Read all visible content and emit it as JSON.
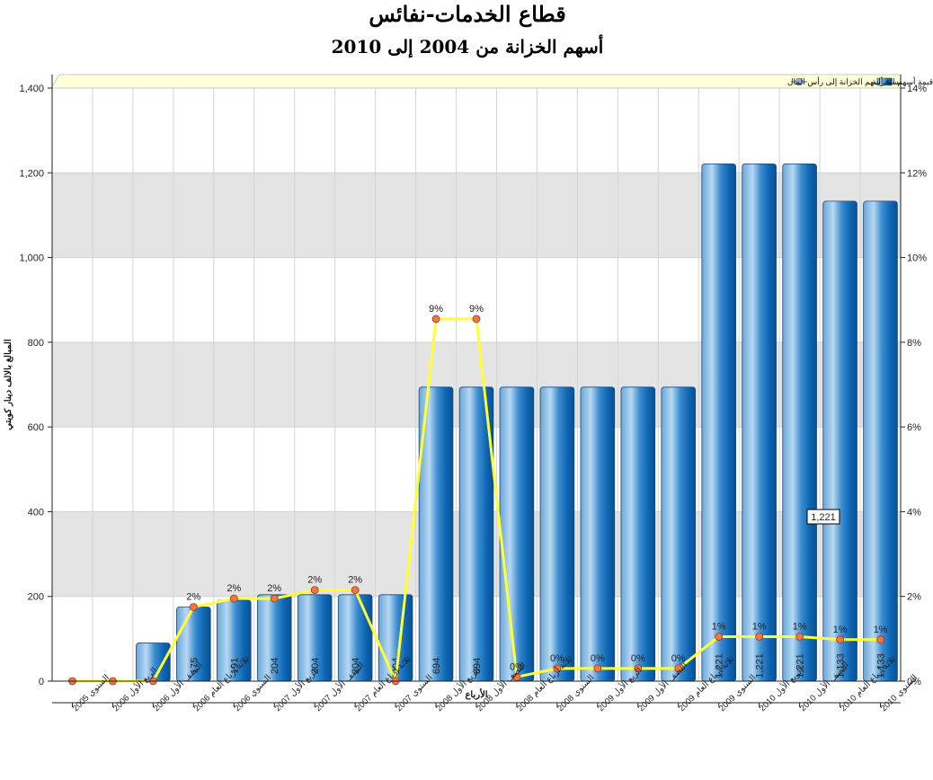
{
  "title": "قطاع الخدمات-نفائس",
  "subtitle": "أسهم الخزانة من 2004 إلى 2010",
  "colors": {
    "bar_top": "#0a5ea8",
    "bar_light": "#8fc0e8",
    "line": "#ffff33",
    "marker": "#ee7744",
    "band": "#e4e4e4",
    "legend_bg": "#ffffd8"
  },
  "chart_data": {
    "type": "bar",
    "title": "قطاع الخدمات-نفائس",
    "subtitle": "أسهم الخزانة من 2004 إلى 2010",
    "xlabel": "الأرباع",
    "ylabel": "المبالغ بالالف دينار كويتي",
    "ylim": [
      0,
      1400
    ],
    "y2lim": [
      0,
      14
    ],
    "yticks": [
      "0",
      "200",
      "400",
      "600",
      "800",
      "1,000",
      "1,200",
      "1,400"
    ],
    "y2ticks": [
      "0%",
      "2%",
      "4%",
      "6%",
      "8%",
      "10%",
      "12%",
      "14%"
    ],
    "categories": [
      "السنوي 2005",
      "الربع الأول 2006",
      "النصف الأول 2006",
      "ثلاثة أرباع العام 2006",
      "السنوي 2006",
      "الربع الأول 2007",
      "النصف الأول 2007",
      "ثلاثة أرباع العام 2007",
      "السنوي 2007",
      "الربع الأول 2008",
      "النصف الأول 2008",
      "ثلاثة أرباع العام 2008",
      "السنوي 2008",
      "الربع الأول 2009",
      "النصف الأول 2009",
      "ثلاثة أرباع العام 2009",
      "السنوي 2009",
      "الربع الأول 2010",
      "النصف الأول 2010",
      "ثلاثة أرباع العام 2010",
      "السنوي 2010"
    ],
    "series": [
      {
        "name": "قيمة أسهم الخزانة",
        "type": "bar",
        "axis": "left",
        "values": [
          0,
          0,
          90,
          175,
          191,
          204,
          204,
          204,
          204,
          694,
          694,
          694,
          694,
          694,
          694,
          694,
          1221,
          1221,
          1221,
          1133,
          1133
        ],
        "labels": [
          "",
          "",
          "",
          "175",
          "191",
          "204",
          "204",
          "204",
          "204",
          "694",
          "694",
          "",
          "",
          "",
          "",
          "",
          "1,221",
          "1,221",
          "1,221",
          "1,133",
          "1,133"
        ]
      },
      {
        "name": "نسبة أسهم الخزانة إلى رأس المال",
        "type": "line",
        "axis": "right",
        "values": [
          0,
          0,
          0,
          1.75,
          1.95,
          1.95,
          2.15,
          2.15,
          0,
          8.55,
          8.55,
          0.1,
          0.3,
          0.3,
          0.3,
          0.3,
          1.05,
          1.05,
          1.05,
          0.98,
          0.98
        ],
        "labels": [
          "",
          "",
          "",
          "2%",
          "2%",
          "2%",
          "2%",
          "2%",
          "",
          "9%",
          "9%",
          "0%",
          "0%",
          "0%",
          "0%",
          "0%",
          "1%",
          "1%",
          "1%",
          "1%",
          "1%"
        ]
      }
    ],
    "tooltip": "1,221",
    "legend_position": "top-right",
    "grid": true
  }
}
